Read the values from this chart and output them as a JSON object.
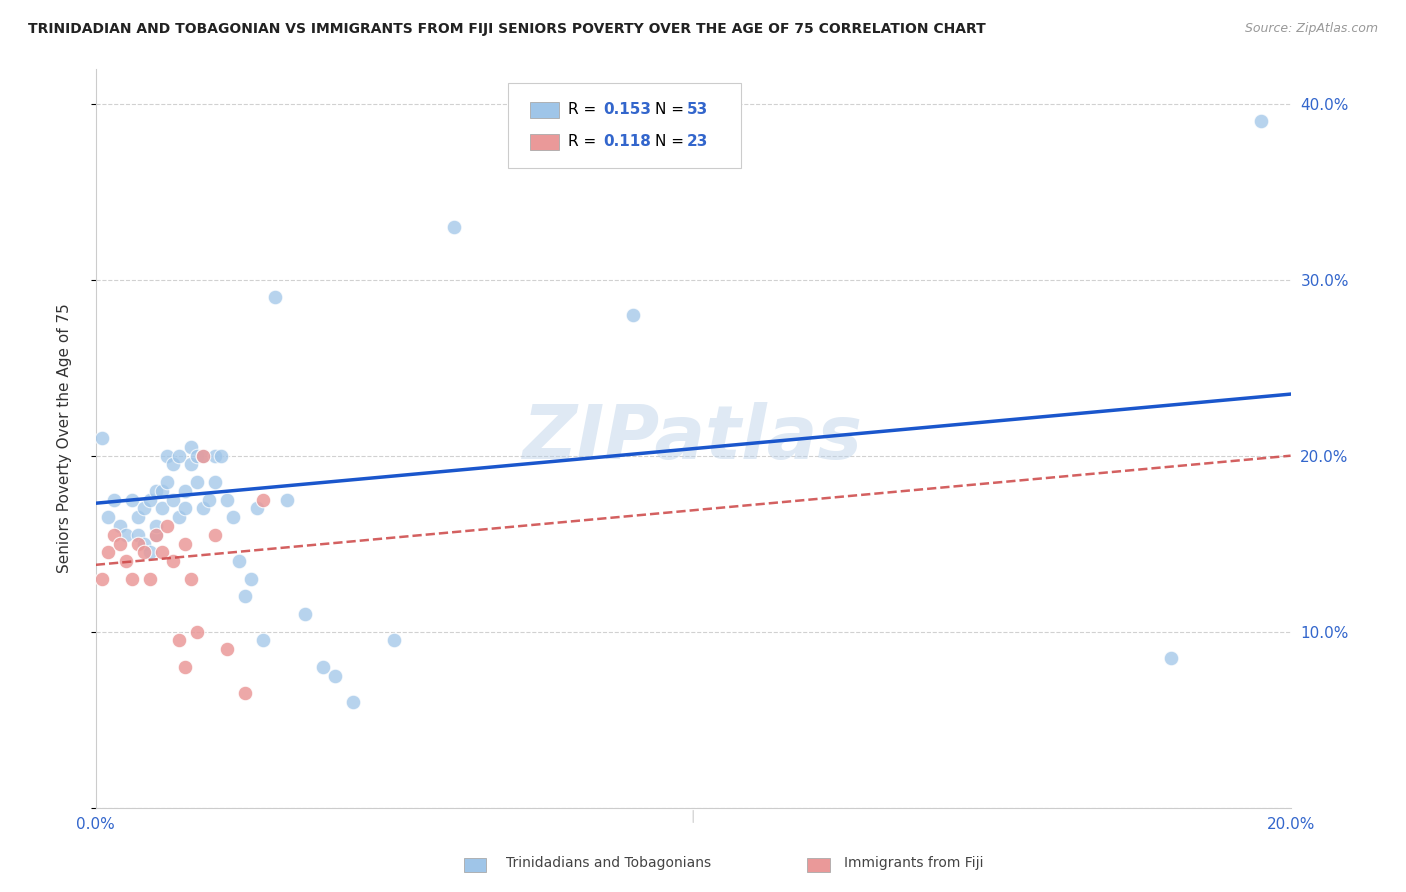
{
  "title": "TRINIDADIAN AND TOBAGONIAN VS IMMIGRANTS FROM FIJI SENIORS POVERTY OVER THE AGE OF 75 CORRELATION CHART",
  "source": "Source: ZipAtlas.com",
  "ylabel": "Seniors Poverty Over the Age of 75",
  "xlim": [
    0.0,
    0.2
  ],
  "ylim": [
    0.0,
    0.42
  ],
  "blue_color": "#9fc5e8",
  "pink_color": "#ea9999",
  "blue_line_color": "#1a56cc",
  "pink_line_color": "#cc4444",
  "R_blue": "0.153",
  "N_blue": "53",
  "R_pink": "0.118",
  "N_pink": "23",
  "legend_label_blue": "Trinidadians and Tobagonians",
  "legend_label_pink": "Immigrants from Fiji",
  "watermark": "ZIPatlas",
  "blue_scatter_x": [
    0.001,
    0.002,
    0.003,
    0.004,
    0.005,
    0.006,
    0.007,
    0.007,
    0.008,
    0.008,
    0.009,
    0.009,
    0.01,
    0.01,
    0.01,
    0.011,
    0.011,
    0.012,
    0.012,
    0.013,
    0.013,
    0.014,
    0.014,
    0.015,
    0.015,
    0.016,
    0.016,
    0.017,
    0.017,
    0.018,
    0.018,
    0.019,
    0.02,
    0.02,
    0.021,
    0.022,
    0.023,
    0.024,
    0.025,
    0.026,
    0.027,
    0.028,
    0.03,
    0.032,
    0.035,
    0.038,
    0.04,
    0.043,
    0.05,
    0.06,
    0.09,
    0.18,
    0.195
  ],
  "blue_scatter_y": [
    0.21,
    0.165,
    0.175,
    0.16,
    0.155,
    0.175,
    0.155,
    0.165,
    0.15,
    0.17,
    0.145,
    0.175,
    0.155,
    0.16,
    0.18,
    0.17,
    0.18,
    0.185,
    0.2,
    0.175,
    0.195,
    0.165,
    0.2,
    0.18,
    0.17,
    0.195,
    0.205,
    0.2,
    0.185,
    0.2,
    0.17,
    0.175,
    0.185,
    0.2,
    0.2,
    0.175,
    0.165,
    0.14,
    0.12,
    0.13,
    0.17,
    0.095,
    0.29,
    0.175,
    0.11,
    0.08,
    0.075,
    0.06,
    0.095,
    0.33,
    0.28,
    0.085,
    0.39
  ],
  "pink_scatter_x": [
    0.001,
    0.002,
    0.003,
    0.004,
    0.005,
    0.006,
    0.007,
    0.008,
    0.009,
    0.01,
    0.011,
    0.012,
    0.013,
    0.014,
    0.015,
    0.015,
    0.016,
    0.017,
    0.018,
    0.02,
    0.022,
    0.025,
    0.028
  ],
  "pink_scatter_y": [
    0.13,
    0.145,
    0.155,
    0.15,
    0.14,
    0.13,
    0.15,
    0.145,
    0.13,
    0.155,
    0.145,
    0.16,
    0.14,
    0.095,
    0.08,
    0.15,
    0.13,
    0.1,
    0.2,
    0.155,
    0.09,
    0.065,
    0.175
  ],
  "blue_line_x0": 0.0,
  "blue_line_y0": 0.173,
  "blue_line_x1": 0.2,
  "blue_line_y1": 0.235,
  "pink_line_x0": 0.0,
  "pink_line_y0": 0.138,
  "pink_line_x1": 0.2,
  "pink_line_y1": 0.2
}
